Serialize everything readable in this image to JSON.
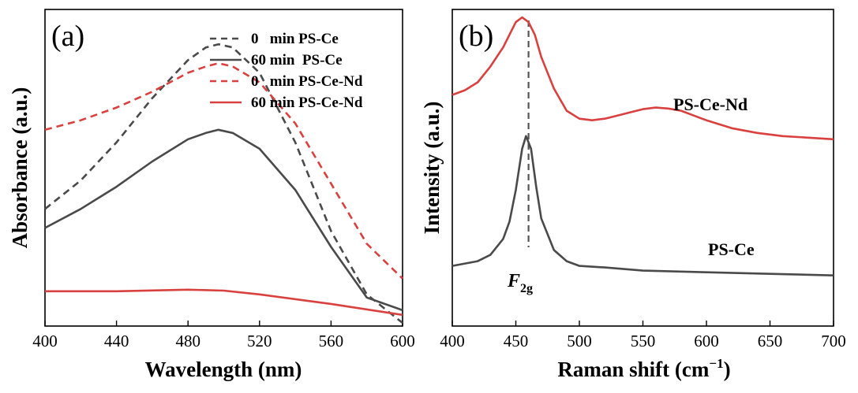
{
  "colors": {
    "dark": "#4a4a4a",
    "red": "#d9413f",
    "ref_line": "#555555"
  },
  "chart_data": [
    {
      "type": "line",
      "panel_label": "(a)",
      "xlabel": "Wavelength (nm)",
      "ylabel": "Absorbance (a.u.)",
      "xlim": [
        400,
        600
      ],
      "ylim": [
        0,
        1
      ],
      "x_ticks": [
        400,
        440,
        480,
        520,
        560,
        600
      ],
      "y_ticks_shown": false,
      "legend_position": "top-right",
      "series": [
        {
          "name": "0   min PS-Ce",
          "style": "dashed",
          "color": "#4a4a4a",
          "x": [
            400,
            420,
            440,
            460,
            480,
            490,
            497,
            505,
            520,
            540,
            560,
            580,
            600
          ],
          "y": [
            0.37,
            0.46,
            0.58,
            0.72,
            0.84,
            0.88,
            0.89,
            0.88,
            0.8,
            0.58,
            0.3,
            0.1,
            0.01
          ]
        },
        {
          "name": "60 min  PS-Ce",
          "style": "solid",
          "color": "#4a4a4a",
          "x": [
            400,
            420,
            440,
            460,
            480,
            490,
            497,
            505,
            520,
            540,
            560,
            580,
            600
          ],
          "y": [
            0.31,
            0.37,
            0.44,
            0.52,
            0.59,
            0.61,
            0.62,
            0.61,
            0.56,
            0.43,
            0.25,
            0.09,
            0.05
          ]
        },
        {
          "name": "0   min PS-Ce-Nd",
          "style": "dashed",
          "color": "#d9413f",
          "x": [
            400,
            420,
            440,
            460,
            480,
            490,
            497,
            505,
            520,
            540,
            560,
            580,
            600
          ],
          "y": [
            0.62,
            0.65,
            0.69,
            0.74,
            0.8,
            0.82,
            0.83,
            0.82,
            0.77,
            0.64,
            0.45,
            0.26,
            0.15
          ]
        },
        {
          "name": "60 min PS-Ce-Nd",
          "style": "solid",
          "color": "#d9413f",
          "x": [
            400,
            440,
            480,
            500,
            520,
            560,
            600
          ],
          "y": [
            0.11,
            0.11,
            0.115,
            0.112,
            0.1,
            0.07,
            0.035
          ]
        }
      ]
    },
    {
      "type": "line",
      "panel_label": "(b)",
      "xlabel": "Raman shift (cm",
      "xlabel_superscript": "−1",
      "xlabel_suffix": ")",
      "ylabel": "Intensity (a.u.)",
      "xlim": [
        400,
        700
      ],
      "ylim": [
        0,
        1
      ],
      "x_ticks": [
        400,
        450,
        500,
        550,
        600,
        650,
        700
      ],
      "y_ticks_shown": false,
      "reference_line": {
        "x": 460,
        "style": "dashed"
      },
      "peak_label": "F",
      "peak_label_subscript": "2g",
      "series": [
        {
          "name": "PS-Ce-Nd",
          "color": "#d9413f",
          "x": [
            400,
            410,
            420,
            430,
            440,
            450,
            455,
            460,
            465,
            470,
            480,
            490,
            500,
            510,
            520,
            530,
            540,
            550,
            560,
            570,
            580,
            590,
            600,
            620,
            640,
            660,
            680,
            700
          ],
          "y": [
            0.73,
            0.745,
            0.77,
            0.82,
            0.88,
            0.96,
            0.975,
            0.96,
            0.92,
            0.85,
            0.75,
            0.68,
            0.655,
            0.65,
            0.655,
            0.665,
            0.675,
            0.685,
            0.69,
            0.687,
            0.68,
            0.665,
            0.65,
            0.625,
            0.61,
            0.6,
            0.595,
            0.59
          ]
        },
        {
          "name": "PS-Ce",
          "color": "#4a4a4a",
          "x": [
            400,
            420,
            430,
            440,
            445,
            450,
            455,
            458,
            462,
            466,
            470,
            480,
            490,
            500,
            520,
            550,
            600,
            650,
            700
          ],
          "y": [
            0.19,
            0.205,
            0.225,
            0.275,
            0.33,
            0.43,
            0.56,
            0.6,
            0.56,
            0.44,
            0.34,
            0.24,
            0.205,
            0.19,
            0.185,
            0.175,
            0.17,
            0.165,
            0.16
          ]
        }
      ]
    }
  ]
}
